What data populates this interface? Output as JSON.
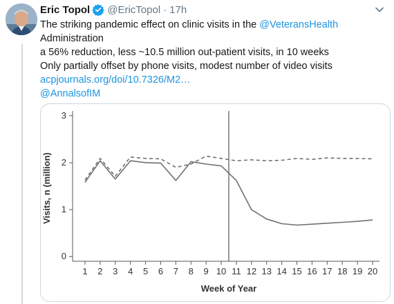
{
  "tweet": {
    "author_name": "Eric Topol",
    "handle": "@EricTopol",
    "separator": "·",
    "time": "17h",
    "text": {
      "l1_prefix": "The striking pandemic effect on clinic visits in the ",
      "l1_mention": "@VeteransHealth",
      "l2": "Administration",
      "l3": "a 56% reduction, less ~10.5 million out-patient visits, in 10 weeks",
      "l4": "Only partially offset by phone visits, modest number of video visits",
      "link": "acpjournals.org/doi/10.7326/M2…",
      "mention2": "@AnnalsofIM"
    }
  },
  "icons": {
    "avatar": "profile-photo",
    "verified": "verified-badge-icon",
    "menu": "chevron-down-icon"
  },
  "colors": {
    "link": "#1b95e0",
    "verified": "#1da1f2",
    "secondary_text": "#657786",
    "chart_line": "#6f6f6f"
  },
  "chart_data": {
    "type": "line",
    "xlabel": "Week of Year",
    "ylabel": "Visits, n (million)",
    "x": [
      1,
      2,
      3,
      4,
      5,
      6,
      7,
      8,
      9,
      10,
      11,
      12,
      13,
      14,
      15,
      16,
      17,
      18,
      19,
      20
    ],
    "x_ticks": [
      "1",
      "2",
      "3",
      "4",
      "5",
      "6",
      "7",
      "8",
      "9",
      "10",
      "11",
      "12",
      "13",
      "14",
      "15",
      "16",
      "17",
      "18",
      "19",
      "20"
    ],
    "y_ticks": [
      "0",
      "1",
      "2",
      "3"
    ],
    "ylim": [
      -0.1,
      3.1
    ],
    "vertical_marker_x": 10.5,
    "series": [
      {
        "style": "solid",
        "values": [
          1.58,
          2.04,
          1.65,
          2.04,
          2.0,
          1.99,
          1.62,
          2.02,
          1.97,
          1.93,
          1.62,
          1.0,
          0.8,
          0.7,
          0.67,
          0.69,
          0.71,
          0.73,
          0.75,
          0.78
        ]
      },
      {
        "style": "dashed",
        "values": [
          1.63,
          2.09,
          1.71,
          2.12,
          2.09,
          2.08,
          1.9,
          1.97,
          2.14,
          2.09,
          2.04,
          2.06,
          2.04,
          2.05,
          2.09,
          2.07,
          2.1,
          2.09,
          2.09,
          2.08
        ]
      }
    ],
    "grid": false,
    "legend": "none"
  }
}
